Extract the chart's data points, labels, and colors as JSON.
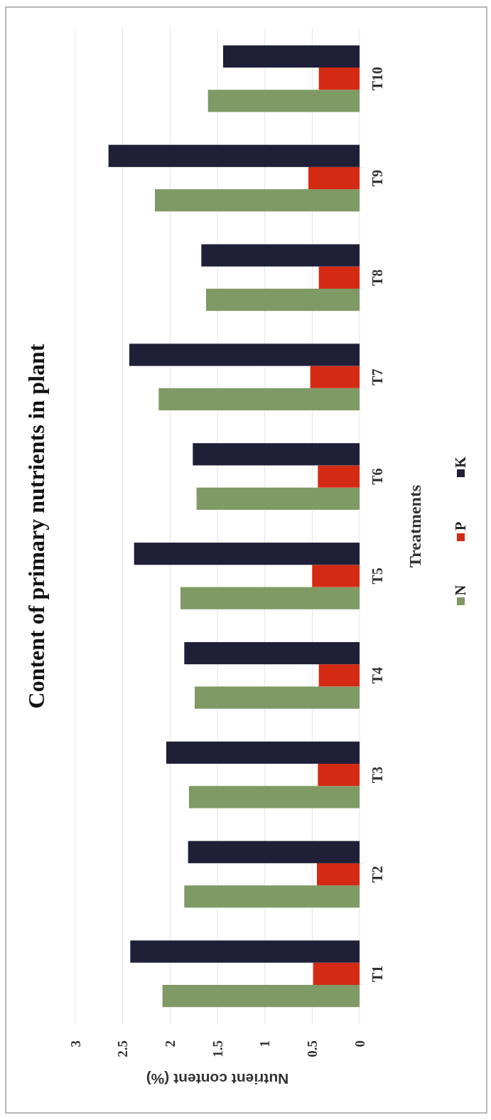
{
  "chart_data": {
    "type": "bar",
    "orientation": "horizontal",
    "title": "Content of primary nutrients in plant",
    "xlabel": "Nutrient content (%)",
    "ylabel": "Treatments",
    "categories": [
      "T10",
      "T9",
      "T8",
      "T7",
      "T6",
      "T5",
      "T4",
      "T3",
      "T2",
      "T1"
    ],
    "series": [
      {
        "name": "N",
        "color": "#7f9a65",
        "values": [
          1.6,
          2.16,
          1.62,
          2.12,
          1.72,
          1.89,
          1.74,
          1.8,
          1.85,
          2.08
        ]
      },
      {
        "name": "P",
        "color": "#d42a14",
        "values": [
          0.43,
          0.54,
          0.43,
          0.52,
          0.44,
          0.5,
          0.43,
          0.44,
          0.45,
          0.49
        ]
      },
      {
        "name": "K",
        "color": "#1f1f38",
        "values": [
          1.44,
          2.65,
          1.67,
          2.43,
          1.76,
          2.38,
          1.85,
          2.04,
          1.81,
          2.42
        ]
      }
    ],
    "xlim": [
      3,
      0
    ],
    "xticks": [
      3,
      2.5,
      2,
      1.5,
      1,
      0.5,
      0
    ],
    "grid": "x",
    "legend": "right"
  }
}
